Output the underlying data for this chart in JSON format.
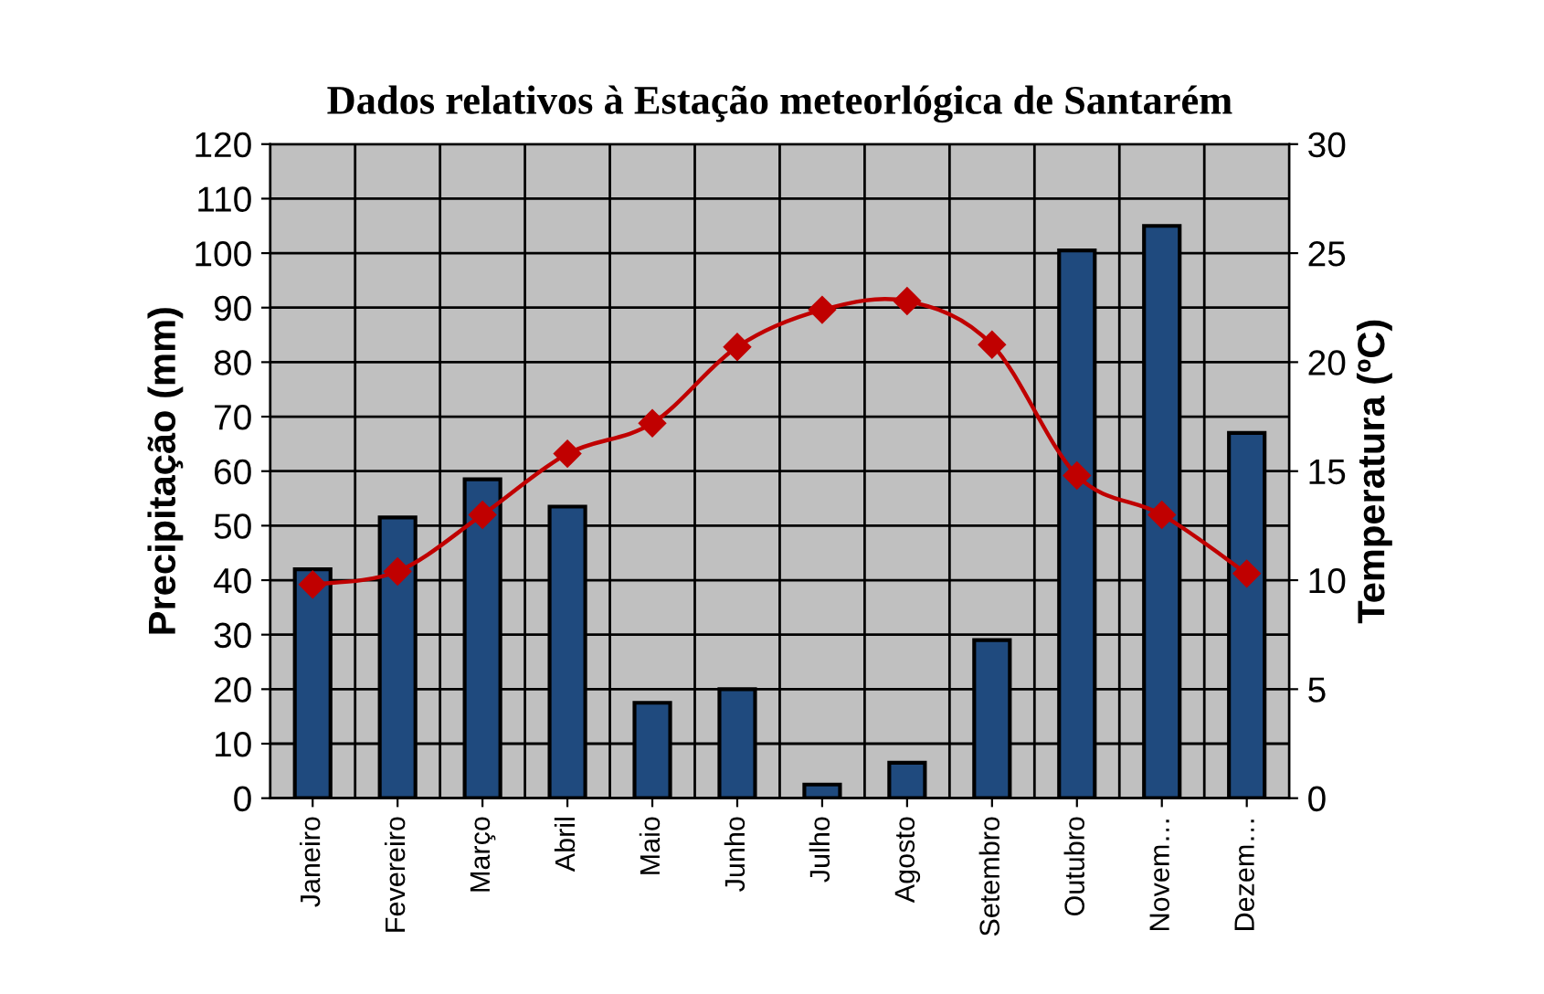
{
  "chart_data": {
    "type": "bar",
    "title": "Dados relativos à Estação meteorlógica de Santarém",
    "ylabel": "Precipitação (mm)",
    "y2label": "Temperatura (ºC)",
    "categories": [
      "Janeiro",
      "Fevereiro",
      "Março",
      "Abril",
      "Maio",
      "Junho",
      "Julho",
      "Agosto",
      "Setembro",
      "Outubro",
      "Novem…",
      "Dezem…"
    ],
    "series": [
      {
        "color": "#1f4a7e",
        "values": [
          42,
          51.5,
          58.5,
          53.5,
          17.5,
          20,
          2.5,
          6.5,
          29,
          100.5,
          105,
          67
        ]
      },
      {
        "type": "line",
        "axis": "y2",
        "color": "#c00000",
        "marker": "diamond",
        "values": [
          9.8,
          10.4,
          13.0,
          15.8,
          17.2,
          20.7,
          22.4,
          22.8,
          20.8,
          14.8,
          13.0,
          10.3
        ]
      }
    ],
    "ylim": [
      0,
      120
    ],
    "yticks": [
      0,
      10,
      20,
      30,
      40,
      50,
      60,
      70,
      80,
      90,
      100,
      110,
      120
    ],
    "y2lim": [
      0,
      30
    ],
    "y2ticks": [
      0,
      5,
      10,
      15,
      20,
      25,
      30
    ],
    "grid": true,
    "legend": false
  }
}
